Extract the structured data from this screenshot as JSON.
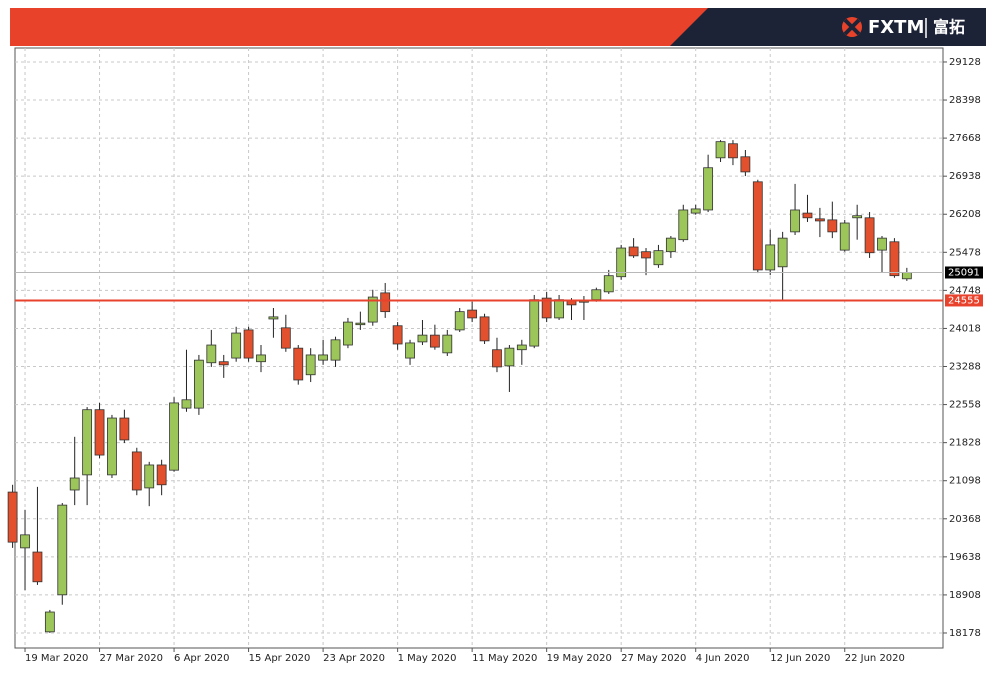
{
  "header": {
    "brand": "FXTM",
    "brand_cn": "富拓"
  },
  "chart_data": {
    "type": "candlestick",
    "categories": [
      null,
      "19 Mar 2020",
      null,
      null,
      null,
      null,
      null,
      "27 Mar 2020",
      null,
      null,
      null,
      null,
      null,
      "6 Apr 2020",
      null,
      null,
      null,
      null,
      null,
      "15 Apr 2020",
      null,
      null,
      null,
      null,
      null,
      "23 Apr 2020",
      null,
      null,
      null,
      null,
      null,
      "1 May 2020",
      null,
      null,
      null,
      null,
      null,
      "11 May 2020",
      null,
      null,
      null,
      null,
      null,
      "19 May 2020",
      null,
      null,
      null,
      null,
      null,
      "27 May 2020",
      null,
      null,
      null,
      null,
      null,
      "4 Jun 2020",
      null,
      null,
      null,
      null,
      null,
      "12 Jun 2020",
      null,
      null,
      null,
      null,
      null,
      "22 Jun 2020",
      null,
      null,
      null,
      null,
      null
    ],
    "open": [
      20880,
      19810,
      19730,
      18200,
      18910,
      20920,
      21210,
      22460,
      21210,
      22300,
      21650,
      20960,
      21400,
      21300,
      22490,
      22490,
      23360,
      23380,
      23450,
      23990,
      23380,
      24200,
      24030,
      23640,
      23130,
      23410,
      23410,
      23700,
      24090,
      24140,
      24700,
      24070,
      23450,
      23760,
      23890,
      23550,
      23990,
      24370,
      24240,
      23610,
      23300,
      23610,
      23680,
      24600,
      24220,
      24550,
      24530,
      24570,
      24720,
      25010,
      25580,
      25490,
      25240,
      25490,
      25720,
      26230,
      26290,
      27290,
      27560,
      27310,
      26830,
      25140,
      25200,
      25870,
      26230,
      26120,
      26100,
      25520,
      26140,
      26140,
      25520,
      25680,
      24970
    ],
    "high": [
      21020,
      20540,
      20980,
      18620,
      20670,
      21940,
      22510,
      22590,
      22360,
      22460,
      21730,
      21460,
      21500,
      22700,
      23610,
      23510,
      23990,
      23510,
      24050,
      24050,
      23700,
      24410,
      24280,
      23700,
      23640,
      23800,
      23860,
      24220,
      24340,
      24760,
      24890,
      24140,
      23800,
      24180,
      24090,
      23990,
      24410,
      24530,
      24300,
      23840,
      23700,
      23800,
      24660,
      24720,
      24660,
      24600,
      24640,
      24800,
      25140,
      25620,
      25750,
      25560,
      25620,
      25790,
      26390,
      26390,
      27350,
      27630,
      27630,
      27440,
      26870,
      25910,
      25870,
      26790,
      26580,
      26330,
      26450,
      26100,
      26390,
      26250,
      25790,
      25750,
      25180
    ],
    "low": [
      19810,
      19000,
      19100,
      18180,
      18720,
      20630,
      20630,
      21530,
      21150,
      21820,
      20820,
      20610,
      20820,
      21270,
      22420,
      22360,
      23280,
      23070,
      23380,
      23380,
      23180,
      23840,
      23570,
      22940,
      22990,
      23320,
      23280,
      23640,
      23990,
      24070,
      24220,
      23610,
      23320,
      23700,
      23610,
      23490,
      23950,
      24140,
      23720,
      23180,
      22800,
      23320,
      23640,
      24140,
      24180,
      24180,
      24180,
      24530,
      24680,
      24950,
      25370,
      25040,
      25180,
      25370,
      25680,
      26200,
      26250,
      27210,
      27150,
      26940,
      25080,
      25040,
      24570,
      25810,
      26060,
      25770,
      25750,
      25490,
      25720,
      25370,
      25100,
      24990,
      24930
    ],
    "close": [
      19920,
      20060,
      19160,
      18580,
      20630,
      21150,
      22460,
      21590,
      22300,
      21880,
      20920,
      21400,
      21020,
      22590,
      22650,
      23410,
      23700,
      23320,
      23930,
      23450,
      23510,
      24240,
      23640,
      23030,
      23510,
      23510,
      23800,
      24140,
      24120,
      24620,
      24340,
      23720,
      23740,
      23890,
      23660,
      23890,
      24340,
      24220,
      23780,
      23280,
      23640,
      23700,
      24570,
      24220,
      24570,
      24470,
      24540,
      24760,
      25030,
      25560,
      25410,
      25370,
      25510,
      25750,
      26290,
      26310,
      27100,
      27600,
      27290,
      27020,
      25140,
      25620,
      25750,
      26290,
      26140,
      26080,
      25870,
      26040,
      26180,
      25470,
      25750,
      25030,
      25091
    ],
    "up_color": "#9cc55a",
    "down_color": "#e2502d",
    "levels": [
      {
        "value": 25091,
        "color": "#b8b8b8",
        "label_bg": "#000000"
      },
      {
        "value": 24555,
        "color": "#e8412c",
        "label_bg": "#e8412c"
      }
    ],
    "ylim": [
      17890,
      29396
    ],
    "yticks": [
      18178,
      18908,
      19638,
      20368,
      21098,
      21828,
      22558,
      23288,
      24018,
      24748,
      25478,
      26208,
      26938,
      27668,
      28398,
      29128
    ],
    "grid": true
  }
}
